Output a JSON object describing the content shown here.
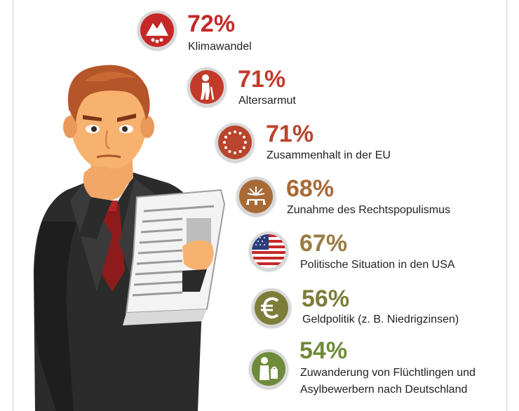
{
  "items": [
    {
      "percent": "72%",
      "label": "Klimawandel",
      "color": "#c62828",
      "icon": "melting-glacier-icon"
    },
    {
      "percent": "71%",
      "label": "Altersarmut",
      "color": "#c33a2a",
      "icon": "elderly-person-icon"
    },
    {
      "percent": "71%",
      "label": "Zusammenhalt in der EU",
      "color": "#b8452c",
      "icon": "eu-stars-icon"
    },
    {
      "percent": "68%",
      "label": "Zunahme des Rechtspopulismus",
      "color": "#a86a37",
      "icon": "megaphone-fist-icon"
    },
    {
      "percent": "67%",
      "label": "Politische Situation in den USA",
      "color": "#9a7a43",
      "icon": "usa-flag-icon"
    },
    {
      "percent": "56%",
      "label": "Geldpolitik (z. B. Niedrigzinsen)",
      "color": "#7c7d38",
      "icon": "euro-icon"
    },
    {
      "percent": "54%",
      "label_line1": "Zuwanderung von Flüchtlingen und",
      "label_line2": "Asylbewerbern nach Deutschland",
      "color": "#6e8a3a",
      "icon": "refugee-icon"
    }
  ],
  "illustration": "businessman-reading-newspaper"
}
